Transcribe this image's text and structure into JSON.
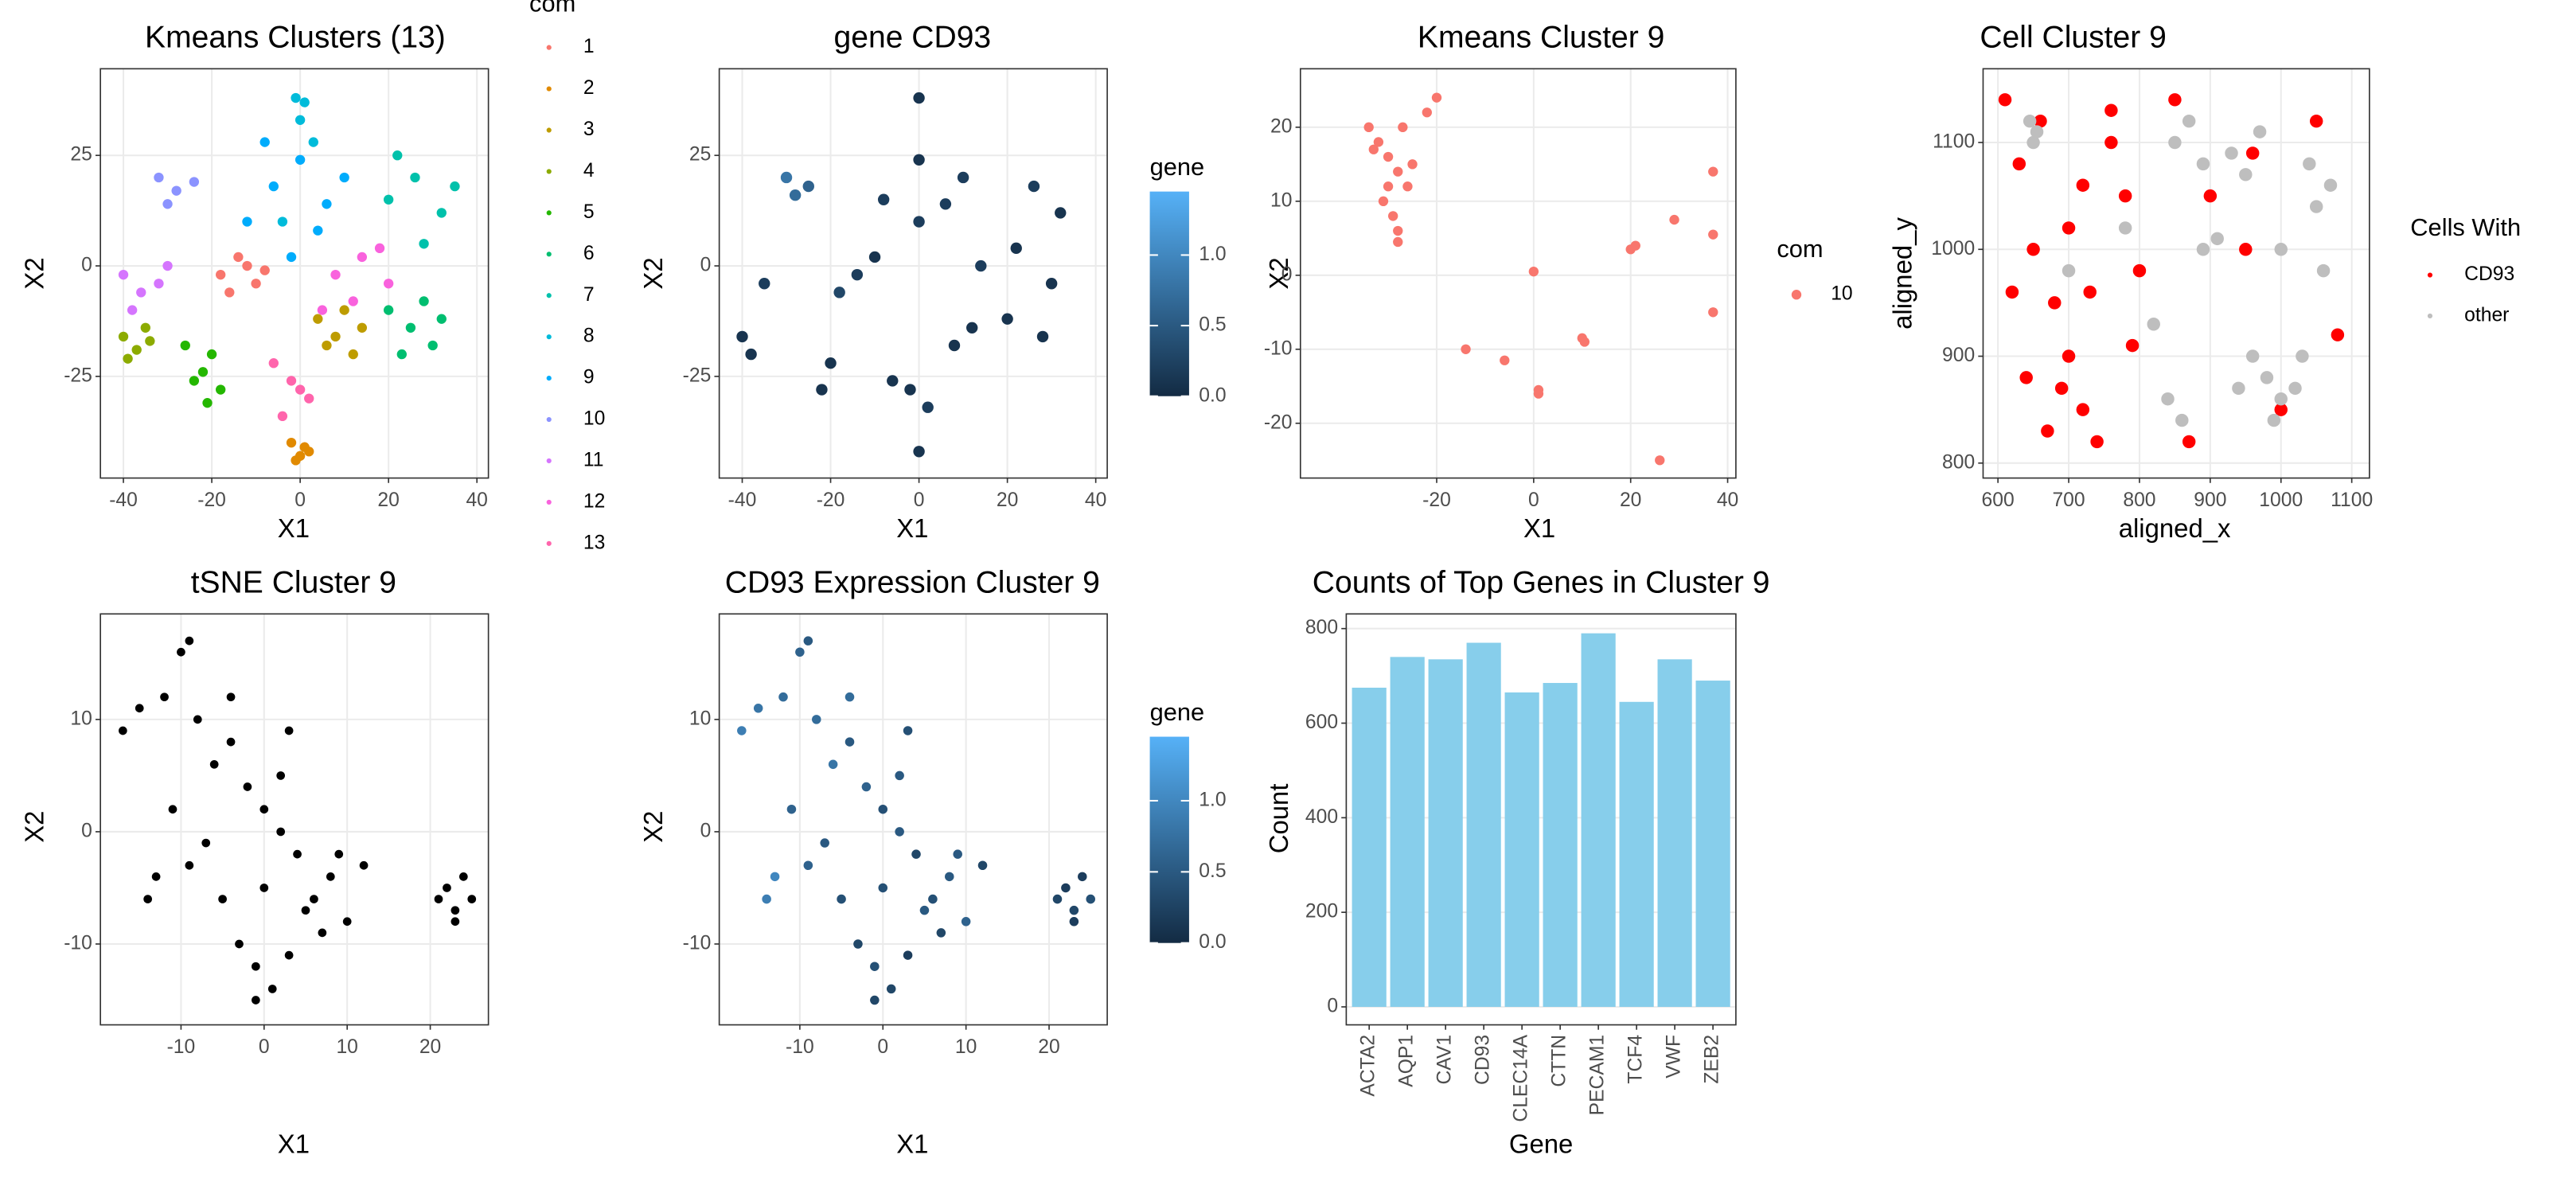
{
  "chart_data": [
    {
      "type": "scatter",
      "title": "Kmeans Clusters (13)",
      "x_label": "X1",
      "y_label": "X2",
      "xlim": [
        -45.2,
        42.6
      ],
      "ylim": [
        -48,
        44.6
      ],
      "xticks": [
        -40,
        -20,
        0,
        20,
        40
      ],
      "yticks": [
        -25,
        0,
        25
      ],
      "grid": true,
      "legend_title": "com",
      "legend_position": "right",
      "series": [
        {
          "name": "1",
          "color": "#F8766D",
          "x": [
            -18,
            -14,
            -10,
            -12,
            -16,
            -8
          ],
          "y": [
            -2,
            2,
            -4,
            0,
            -6,
            -1
          ]
        },
        {
          "name": "2",
          "color": "#E18A00",
          "x": [
            -2,
            0,
            2,
            -1,
            1
          ],
          "y": [
            -40,
            -43,
            -42,
            -44,
            -41
          ]
        },
        {
          "name": "3",
          "color": "#BE9C00",
          "x": [
            4,
            8,
            12,
            6,
            10,
            14
          ],
          "y": [
            -12,
            -16,
            -20,
            -18,
            -10,
            -14
          ]
        },
        {
          "name": "4",
          "color": "#8CAB00",
          "x": [
            -40,
            -37,
            -34,
            -39,
            -35
          ],
          "y": [
            -16,
            -19,
            -17,
            -21,
            -14
          ]
        },
        {
          "name": "5",
          "color": "#24B700",
          "x": [
            -26,
            -22,
            -18,
            -24,
            -20,
            -21
          ],
          "y": [
            -18,
            -24,
            -28,
            -26,
            -20,
            -31
          ]
        },
        {
          "name": "6",
          "color": "#00BE70",
          "x": [
            20,
            25,
            30,
            23,
            28,
            32
          ],
          "y": [
            -10,
            -14,
            -18,
            -20,
            -8,
            -12
          ]
        },
        {
          "name": "7",
          "color": "#00C1AB",
          "x": [
            20,
            26,
            32,
            28,
            22,
            35
          ],
          "y": [
            15,
            20,
            12,
            5,
            25,
            18
          ]
        },
        {
          "name": "8",
          "color": "#00BBDA",
          "x": [
            -1,
            1,
            0,
            -4,
            3
          ],
          "y": [
            38,
            37,
            33,
            10,
            28
          ]
        },
        {
          "name": "9",
          "color": "#00ACFC",
          "x": [
            -12,
            -6,
            0,
            6,
            10,
            -8,
            4,
            -2
          ],
          "y": [
            10,
            18,
            24,
            14,
            20,
            28,
            8,
            2
          ]
        },
        {
          "name": "10",
          "color": "#8B93FF",
          "x": [
            -32,
            -28,
            -24,
            -30
          ],
          "y": [
            20,
            17,
            19,
            14
          ]
        },
        {
          "name": "11",
          "color": "#D575FE",
          "x": [
            -40,
            -36,
            -32,
            -38,
            -30
          ],
          "y": [
            -2,
            -6,
            -4,
            -10,
            0
          ]
        },
        {
          "name": "12",
          "color": "#F962DD",
          "x": [
            8,
            14,
            20,
            12,
            18,
            5
          ],
          "y": [
            -2,
            2,
            -4,
            -8,
            4,
            -10
          ]
        },
        {
          "name": "13",
          "color": "#FF65AC",
          "x": [
            -6,
            -2,
            2,
            -4,
            0
          ],
          "y": [
            -22,
            -26,
            -30,
            -34,
            -28
          ]
        }
      ]
    },
    {
      "type": "scatter",
      "title": "gene CD93",
      "x_label": "X1",
      "y_label": "X2",
      "xlim": [
        -45.2,
        42.6
      ],
      "ylim": [
        -48,
        44.6
      ],
      "xticks": [
        -40,
        -20,
        0,
        20,
        40
      ],
      "yticks": [
        -25,
        0,
        25
      ],
      "grid": true,
      "colorbar": {
        "title": "gene",
        "low": "#132B43",
        "high": "#56B1F7",
        "lim": [
          0,
          1.45
        ],
        "ticks": [
          {
            "value": 0,
            "label": "0.0"
          },
          0.5,
          {
            "value": 1,
            "label": "1.0"
          }
        ]
      },
      "series": [
        {
          "x": [
            -30,
            -28,
            -25,
            -40,
            -35,
            -20,
            -14,
            -10,
            0,
            0,
            -8,
            0,
            6,
            12,
            20,
            26,
            32,
            28,
            14,
            8,
            -22,
            -18,
            -2,
            2,
            0,
            -38,
            22,
            30,
            10,
            -6
          ],
          "y": [
            20,
            16,
            18,
            -16,
            -4,
            -22,
            -2,
            2,
            38,
            -42,
            15,
            24,
            14,
            -14,
            -12,
            18,
            12,
            -16,
            0,
            -18,
            -28,
            -6,
            -28,
            -32,
            10,
            -20,
            4,
            -4,
            20,
            -26
          ],
          "values": [
            0.8,
            0.7,
            0.6,
            0.1,
            0.2,
            0.1,
            0.2,
            0.1,
            0.1,
            0.1,
            0.2,
            0.1,
            0.2,
            0.1,
            0.1,
            0.2,
            0.1,
            0.1,
            0.2,
            0.1,
            0.1,
            0.3,
            0.1,
            0.2,
            0.2,
            0.1,
            0.1,
            0.1,
            0.2,
            0.1
          ]
        }
      ]
    },
    {
      "type": "scatter",
      "title": "Kmeans Cluster 9",
      "x_label": "X1",
      "y_label": "X2",
      "xlim": [
        -48.1,
        41.7
      ],
      "ylim": [
        -27.4,
        27.9
      ],
      "xticks": [
        -20,
        0,
        20,
        40
      ],
      "yticks": [
        -20,
        -10,
        0,
        10,
        20
      ],
      "grid": true,
      "legend_title": "com",
      "legend_position": "right",
      "series": [
        {
          "name": "10",
          "color": "#F8766D",
          "x": [
            -34,
            -32,
            -30,
            -28,
            -26,
            -31,
            -29,
            -27,
            -33,
            -25,
            -22,
            -20,
            -28,
            -30,
            -28,
            0,
            -14,
            -6,
            1,
            1,
            10,
            10.5,
            20,
            21,
            29,
            37,
            37,
            37,
            26
          ],
          "y": [
            20,
            18,
            16,
            14,
            12,
            10,
            8,
            20,
            17,
            15,
            22,
            24,
            6,
            12,
            4.5,
            0.5,
            -10,
            -11.5,
            -15.5,
            -16,
            -8.5,
            -9,
            3.5,
            4,
            7.5,
            14,
            5.5,
            -5,
            -25
          ]
        }
      ]
    },
    {
      "type": "scatter",
      "title": "Cell Cluster 9",
      "x_label": "aligned_x",
      "y_label": "aligned_y",
      "xlim": [
        579,
        1125
      ],
      "ylim": [
        786,
        1169
      ],
      "xticks": [
        600,
        700,
        800,
        900,
        1000,
        1100
      ],
      "yticks": [
        800,
        900,
        1000,
        1100
      ],
      "grid": true,
      "legend_title": "Cells With",
      "legend_position": "right",
      "series": [
        {
          "name": "CD93",
          "color": "#FF0000",
          "x": [
            610,
            630,
            650,
            680,
            700,
            720,
            740,
            760,
            780,
            800,
            640,
            670,
            700,
            730,
            760,
            790,
            620,
            660,
            690,
            720,
            850,
            900,
            950,
            1000,
            1050,
            1080,
            870,
            960
          ],
          "y": [
            1140,
            1080,
            1000,
            950,
            900,
            850,
            820,
            1100,
            1050,
            980,
            880,
            830,
            1020,
            960,
            1130,
            910,
            960,
            1120,
            870,
            1060,
            1140,
            1050,
            1000,
            850,
            1120,
            920,
            820,
            1090
          ]
        },
        {
          "name": "other",
          "color": "#BEBEBE",
          "x": [
            645,
            655,
            650,
            850,
            870,
            890,
            930,
            950,
            970,
            960,
            980,
            1000,
            1020,
            940,
            990,
            1030,
            890,
            910,
            1050,
            1070,
            840,
            860,
            1060,
            700,
            780,
            820,
            1000,
            1040
          ],
          "y": [
            1120,
            1110,
            1100,
            1100,
            1120,
            1080,
            1090,
            1070,
            1110,
            900,
            880,
            860,
            870,
            870,
            840,
            900,
            1000,
            1010,
            1040,
            1060,
            860,
            840,
            980,
            980,
            1020,
            930,
            1000,
            1080
          ]
        }
      ]
    },
    {
      "type": "scatter",
      "title": "tSNE Cluster 9",
      "x_label": "X1",
      "y_label": "X2",
      "xlim": [
        -19.7,
        27
      ],
      "ylim": [
        -17.2,
        19.4
      ],
      "xticks": [
        -10,
        0,
        10,
        20
      ],
      "yticks": [
        -10,
        0,
        10
      ],
      "grid": true,
      "series": [
        {
          "color": "#000000",
          "x": [
            -17,
            -15,
            -12,
            -10,
            -9,
            -8,
            -6,
            -4,
            -2,
            0,
            2,
            4,
            6,
            8,
            10,
            12,
            -13,
            -11,
            -7,
            -5,
            -3,
            -1,
            1,
            3,
            5,
            7,
            -9,
            -4,
            0,
            2,
            -1,
            3,
            22,
            23,
            24,
            25,
            21,
            23,
            -14,
            9
          ],
          "y": [
            9,
            11,
            12,
            16,
            17,
            10,
            6,
            8,
            4,
            2,
            0,
            -2,
            -6,
            -4,
            -8,
            -3,
            -4,
            2,
            -1,
            -6,
            -10,
            -12,
            -14,
            -11,
            -7,
            -9,
            -3,
            12,
            -5,
            5,
            -15,
            9,
            -5,
            -7,
            -4,
            -6,
            -6,
            -8,
            -6,
            -2
          ]
        }
      ]
    },
    {
      "type": "scatter",
      "title": "CD93 Expression Cluster 9",
      "x_label": "X1",
      "y_label": "X2",
      "xlim": [
        -19.7,
        27
      ],
      "ylim": [
        -17.2,
        19.4
      ],
      "xticks": [
        -10,
        0,
        10,
        20
      ],
      "yticks": [
        -10,
        0,
        10
      ],
      "grid": true,
      "colorbar": {
        "title": "gene",
        "low": "#132B43",
        "high": "#56B1F7",
        "lim": [
          0,
          1.45
        ],
        "ticks": [
          {
            "value": 0,
            "label": "0.0"
          },
          0.5,
          {
            "value": 1,
            "label": "1.0"
          }
        ]
      },
      "series": [
        {
          "x": [
            -17,
            -15,
            -12,
            -10,
            -9,
            -8,
            -6,
            -4,
            -2,
            0,
            2,
            4,
            6,
            8,
            10,
            12,
            -13,
            -11,
            -7,
            -5,
            -3,
            -1,
            1,
            3,
            5,
            7,
            -9,
            -4,
            0,
            2,
            -1,
            3,
            22,
            23,
            24,
            25,
            21,
            23,
            -14,
            9
          ],
          "y": [
            9,
            11,
            12,
            16,
            17,
            10,
            6,
            8,
            4,
            2,
            0,
            -2,
            -6,
            -4,
            -8,
            -3,
            -4,
            2,
            -1,
            -6,
            -10,
            -12,
            -14,
            -11,
            -7,
            -9,
            -3,
            12,
            -5,
            5,
            -15,
            9,
            -5,
            -7,
            -4,
            -6,
            -6,
            -8,
            -6,
            -2
          ],
          "values": [
            0.9,
            0.8,
            0.7,
            0.6,
            0.5,
            0.7,
            0.8,
            0.5,
            0.6,
            0.4,
            0.5,
            0.3,
            0.4,
            0.5,
            0.6,
            0.3,
            1.0,
            0.6,
            0.5,
            0.4,
            0.3,
            0.4,
            0.3,
            0.2,
            0.5,
            0.3,
            0.6,
            0.7,
            0.4,
            0.5,
            0.3,
            0.4,
            0.2,
            0.3,
            0.2,
            0.4,
            0.3,
            0.2,
            0.9,
            0.5
          ]
        }
      ]
    },
    {
      "type": "bar",
      "title": "Counts of Top Genes in Cluster 9",
      "x_label": "Gene",
      "y_label": "Count",
      "categories": [
        "ACTA2",
        "AQP1",
        "CAV1",
        "CD93",
        "CLEC14A",
        "CTTN",
        "PECAM1",
        "TCF4",
        "VWF",
        "ZEB2"
      ],
      "values": [
        675,
        740,
        735,
        770,
        665,
        685,
        790,
        645,
        735,
        690
      ],
      "color": "#87CEEB",
      "ylim": [
        -38,
        831
      ],
      "yticks": [
        0,
        200,
        400,
        600,
        800
      ],
      "grid": true
    }
  ]
}
